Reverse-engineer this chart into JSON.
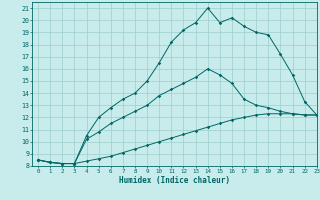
{
  "xlabel": "Humidex (Indice chaleur)",
  "bg_color": "#c8ebeb",
  "line_color": "#006666",
  "grid_color": "#9ecece",
  "xlim": [
    -0.5,
    23
  ],
  "ylim": [
    8,
    21.5
  ],
  "xticks": [
    0,
    1,
    2,
    3,
    4,
    5,
    6,
    7,
    8,
    9,
    10,
    11,
    12,
    13,
    14,
    15,
    16,
    17,
    18,
    19,
    20,
    21,
    22,
    23
  ],
  "yticks": [
    8,
    9,
    10,
    11,
    12,
    13,
    14,
    15,
    16,
    17,
    18,
    19,
    20,
    21
  ],
  "line1_x": [
    0,
    1,
    2,
    3,
    4,
    5,
    6,
    7,
    8,
    9,
    10,
    11,
    12,
    13,
    14,
    15,
    16,
    17,
    18,
    19,
    20,
    21,
    22,
    23
  ],
  "line1_y": [
    8.5,
    8.3,
    8.2,
    8.2,
    8.4,
    8.6,
    8.8,
    9.1,
    9.4,
    9.7,
    10.0,
    10.3,
    10.6,
    10.9,
    11.2,
    11.5,
    11.8,
    12.0,
    12.2,
    12.3,
    12.3,
    12.3,
    12.2,
    12.2
  ],
  "line2_x": [
    0,
    1,
    2,
    3,
    4,
    5,
    6,
    7,
    8,
    9,
    10,
    11,
    12,
    13,
    14,
    15,
    16,
    17,
    18,
    19,
    20,
    21,
    22,
    23
  ],
  "line2_y": [
    8.5,
    8.3,
    8.2,
    8.2,
    10.2,
    10.8,
    11.5,
    12.0,
    12.5,
    13.0,
    13.8,
    14.3,
    14.8,
    15.3,
    16.0,
    15.5,
    14.8,
    13.5,
    13.0,
    12.8,
    12.5,
    12.3,
    12.2,
    12.2
  ],
  "line3_x": [
    0,
    1,
    2,
    3,
    4,
    5,
    6,
    7,
    8,
    9,
    10,
    11,
    12,
    13,
    14,
    15,
    16,
    17,
    18,
    19,
    20,
    21,
    22,
    23
  ],
  "line3_y": [
    8.5,
    8.3,
    8.2,
    8.2,
    10.5,
    12.0,
    12.8,
    13.5,
    14.0,
    15.0,
    16.5,
    18.2,
    19.2,
    19.8,
    21.0,
    19.8,
    20.2,
    19.5,
    19.0,
    18.8,
    17.2,
    15.5,
    13.3,
    12.2
  ]
}
